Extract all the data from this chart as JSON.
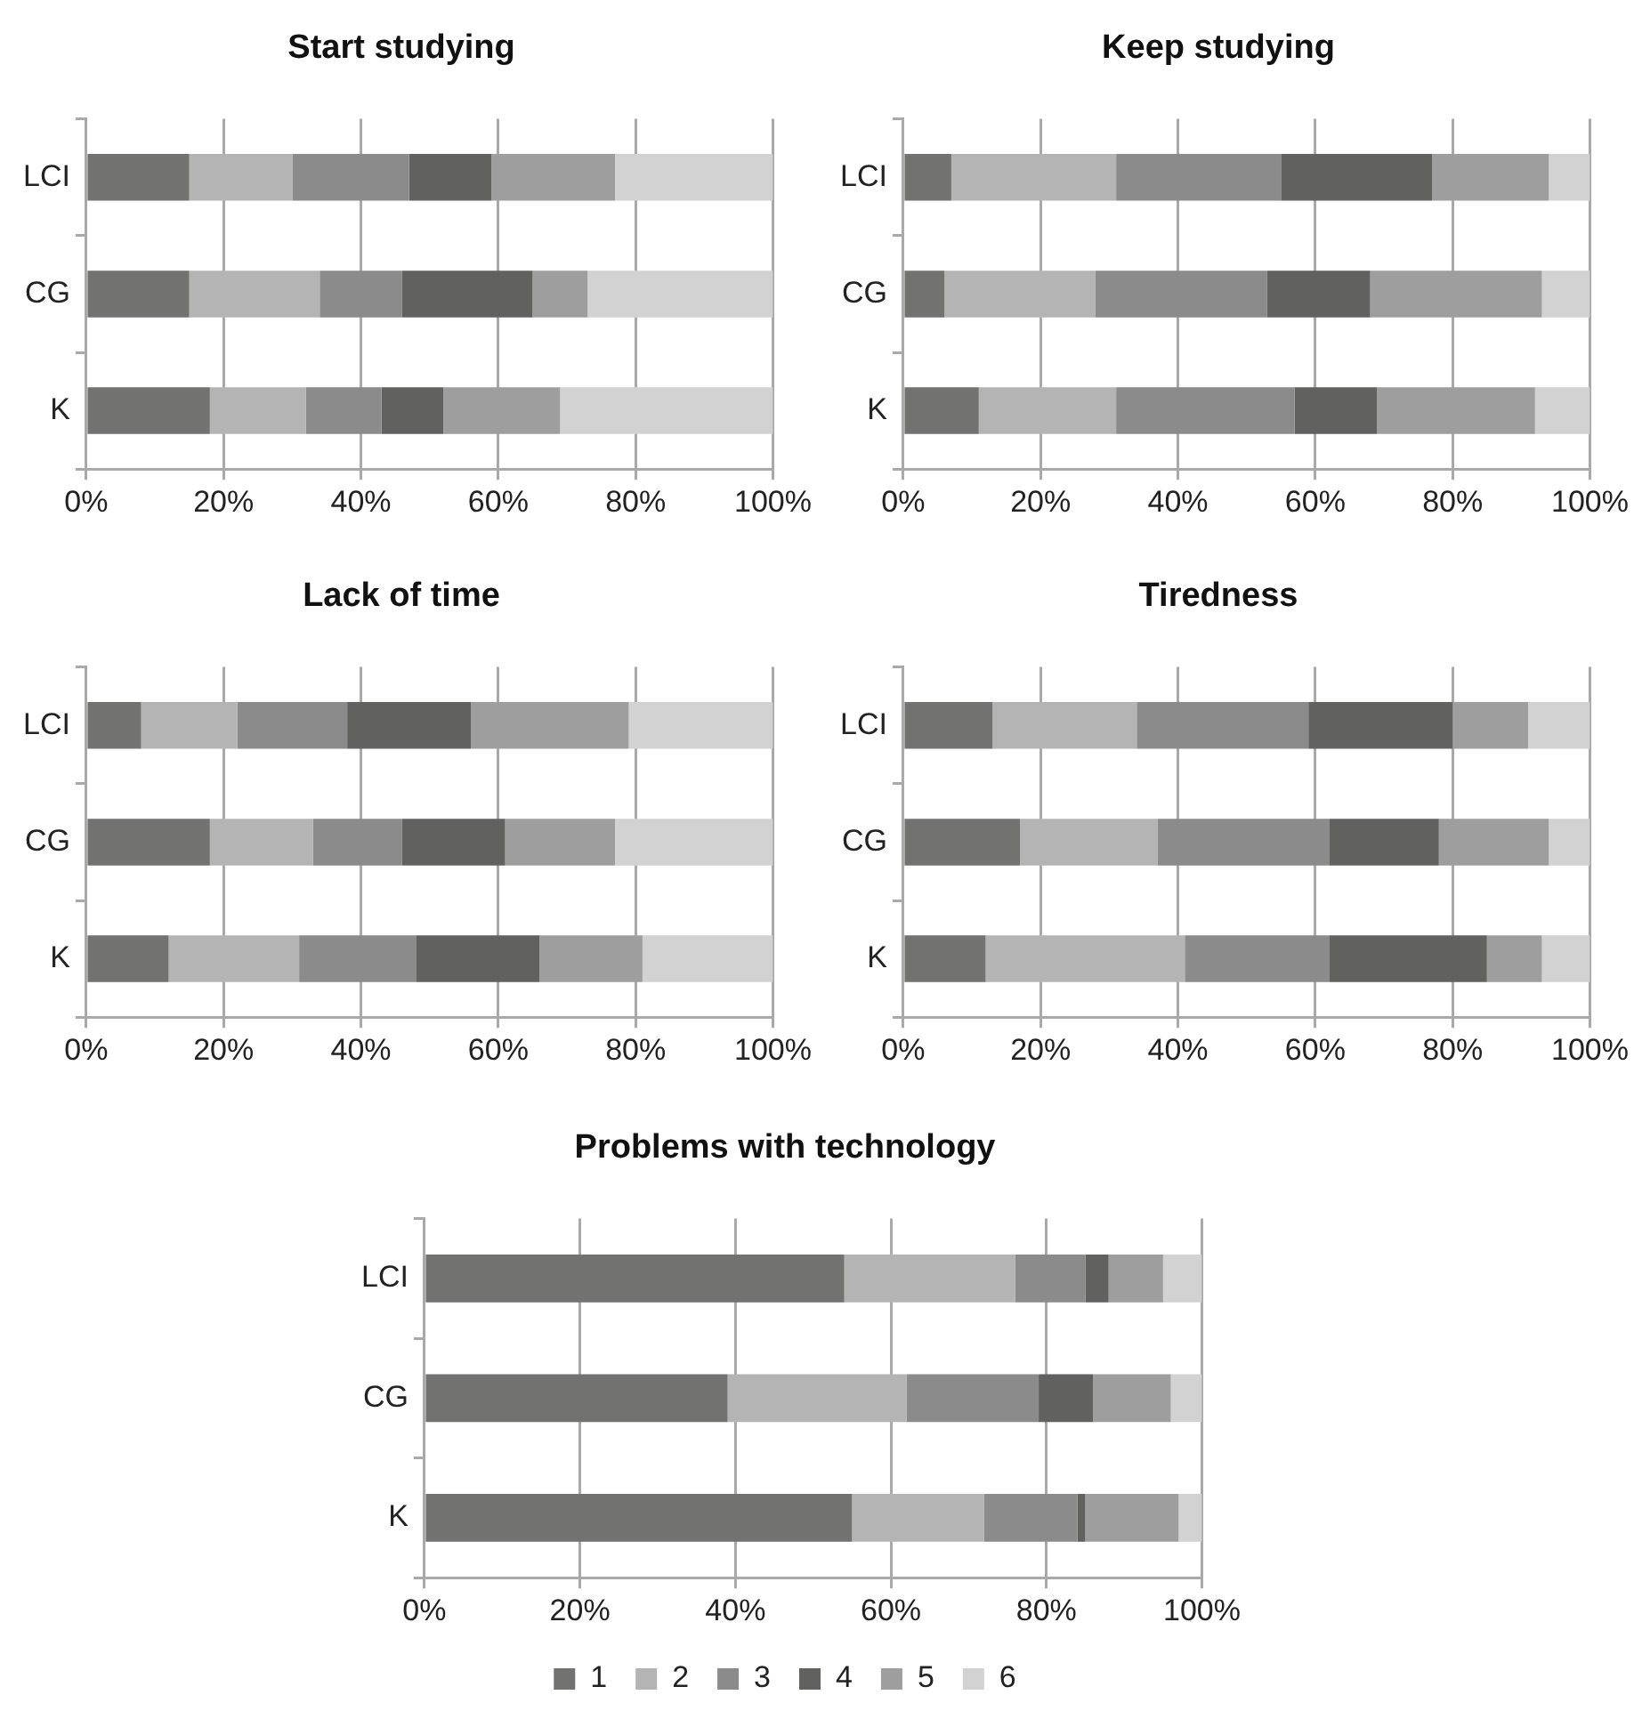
{
  "chart_data": [
    {
      "type": "bar",
      "title": "Start studying",
      "orientation": "horizontal",
      "stacked": true,
      "categories": [
        "LCI",
        "CG",
        "K"
      ],
      "xlim": [
        0,
        100
      ],
      "xticks": [
        {
          "value": 0,
          "label": "0%"
        },
        {
          "value": 20,
          "label": "20%"
        },
        {
          "value": 40,
          "label": "40%"
        },
        {
          "value": 60,
          "label": "60%"
        },
        {
          "value": 80,
          "label": "80%"
        },
        {
          "value": 100,
          "label": "100%"
        }
      ],
      "grid": "x",
      "legend": false,
      "series": [
        {
          "color": "#727270",
          "values": [
            15,
            15,
            18
          ]
        },
        {
          "color": "#b3b4b3",
          "values": [
            15,
            19,
            14
          ]
        },
        {
          "color": "#8b8b8b",
          "values": [
            17,
            12,
            11
          ]
        },
        {
          "color": "#61615f",
          "values": [
            12,
            19,
            9
          ]
        },
        {
          "color": "#9d9e9d",
          "values": [
            18,
            8,
            17
          ]
        },
        {
          "color": "#d2d2d2",
          "values": [
            23,
            27,
            31
          ]
        }
      ]
    },
    {
      "type": "bar",
      "title": "Keep studying",
      "orientation": "horizontal",
      "stacked": true,
      "categories": [
        "LCI",
        "CG",
        "K"
      ],
      "xlim": [
        0,
        100
      ],
      "xticks": [
        {
          "value": 0,
          "label": "0%"
        },
        {
          "value": 20,
          "label": "20%"
        },
        {
          "value": 40,
          "label": "40%"
        },
        {
          "value": 60,
          "label": "60%"
        },
        {
          "value": 80,
          "label": "80%"
        },
        {
          "value": 100,
          "label": "100%"
        }
      ],
      "grid": "x",
      "legend": false,
      "series": [
        {
          "color": "#727270",
          "values": [
            7,
            6,
            11
          ]
        },
        {
          "color": "#b3b4b3",
          "values": [
            24,
            22,
            20
          ]
        },
        {
          "color": "#8b8b8b",
          "values": [
            24,
            25,
            26
          ]
        },
        {
          "color": "#61615f",
          "values": [
            22,
            15,
            12
          ]
        },
        {
          "color": "#9d9e9d",
          "values": [
            17,
            25,
            23
          ]
        },
        {
          "color": "#d2d2d2",
          "values": [
            6,
            7,
            8
          ]
        }
      ]
    },
    {
      "type": "bar",
      "title": "Lack of time",
      "orientation": "horizontal",
      "stacked": true,
      "categories": [
        "LCI",
        "CG",
        "K"
      ],
      "xlim": [
        0,
        100
      ],
      "xticks": [
        {
          "value": 0,
          "label": "0%"
        },
        {
          "value": 20,
          "label": "20%"
        },
        {
          "value": 40,
          "label": "40%"
        },
        {
          "value": 60,
          "label": "60%"
        },
        {
          "value": 80,
          "label": "80%"
        },
        {
          "value": 100,
          "label": "100%"
        }
      ],
      "grid": "x",
      "legend": false,
      "series": [
        {
          "color": "#727270",
          "values": [
            8,
            18,
            12
          ]
        },
        {
          "color": "#b3b4b3",
          "values": [
            14,
            15,
            19
          ]
        },
        {
          "color": "#8b8b8b",
          "values": [
            16,
            13,
            17
          ]
        },
        {
          "color": "#61615f",
          "values": [
            18,
            15,
            18
          ]
        },
        {
          "color": "#9d9e9d",
          "values": [
            23,
            16,
            15
          ]
        },
        {
          "color": "#d2d2d2",
          "values": [
            21,
            23,
            19
          ]
        }
      ]
    },
    {
      "type": "bar",
      "title": "Tiredness",
      "orientation": "horizontal",
      "stacked": true,
      "categories": [
        "LCI",
        "CG",
        "K"
      ],
      "xlim": [
        0,
        100
      ],
      "xticks": [
        {
          "value": 0,
          "label": "0%"
        },
        {
          "value": 20,
          "label": "20%"
        },
        {
          "value": 40,
          "label": "40%"
        },
        {
          "value": 60,
          "label": "60%"
        },
        {
          "value": 80,
          "label": "80%"
        },
        {
          "value": 100,
          "label": "100%"
        }
      ],
      "grid": "x",
      "legend": false,
      "series": [
        {
          "color": "#727270",
          "values": [
            13,
            17,
            12
          ]
        },
        {
          "color": "#b3b4b3",
          "values": [
            21,
            20,
            29
          ]
        },
        {
          "color": "#8b8b8b",
          "values": [
            25,
            25,
            21
          ]
        },
        {
          "color": "#61615f",
          "values": [
            21,
            16,
            23
          ]
        },
        {
          "color": "#9d9e9d",
          "values": [
            11,
            16,
            8
          ]
        },
        {
          "color": "#d2d2d2",
          "values": [
            9,
            6,
            7
          ]
        }
      ]
    },
    {
      "type": "bar",
      "title": "Problems with technology",
      "orientation": "horizontal",
      "stacked": true,
      "categories": [
        "LCI",
        "CG",
        "K"
      ],
      "xlim": [
        0,
        100
      ],
      "xticks": [
        {
          "value": 0,
          "label": "0%"
        },
        {
          "value": 20,
          "label": "20%"
        },
        {
          "value": 40,
          "label": "40%"
        },
        {
          "value": 60,
          "label": "60%"
        },
        {
          "value": 80,
          "label": "80%"
        },
        {
          "value": 100,
          "label": "100%"
        }
      ],
      "grid": "x",
      "legend": "bottom",
      "series": [
        {
          "name": "1",
          "color": "#727270",
          "values": [
            54,
            39,
            55
          ]
        },
        {
          "name": "2",
          "color": "#b3b4b3",
          "values": [
            22,
            23,
            17
          ]
        },
        {
          "name": "3",
          "color": "#8b8b8b",
          "values": [
            9,
            17,
            12
          ]
        },
        {
          "name": "4",
          "color": "#61615f",
          "values": [
            3,
            7,
            1
          ]
        },
        {
          "name": "5",
          "color": "#9d9e9d",
          "values": [
            7,
            10,
            12
          ]
        },
        {
          "name": "6",
          "color": "#d2d2d2",
          "values": [
            5,
            4,
            3
          ]
        }
      ]
    }
  ]
}
